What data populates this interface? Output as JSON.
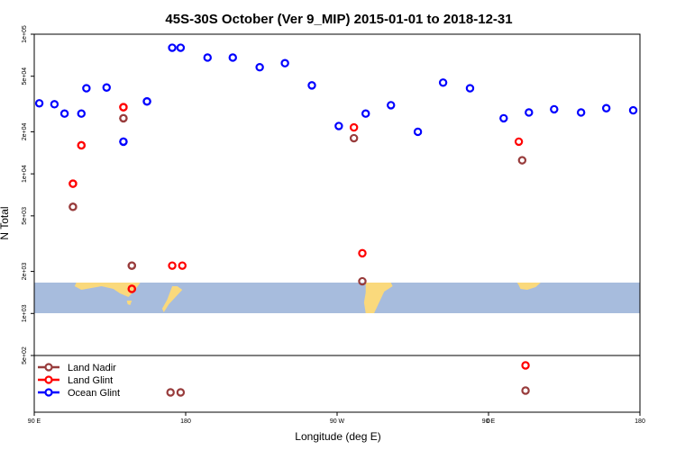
{
  "chart_data": {
    "type": "scatter",
    "title": "45S-30S October (Ver 9_MIP)   2015-01-01 to 2018-12-31",
    "xlabel": "Longitude (deg E)",
    "ylabel": "N Total",
    "y_scale": "log",
    "xlim": [
      90,
      180
    ],
    "ylim": [
      500,
      100000
    ],
    "x_tick_labels": [
      "90 E",
      "180",
      "90 W",
      "0",
      "90 E",
      "180"
    ],
    "y_tick_labels": [
      "5e+02",
      "1e+03",
      "2e+03",
      "5e+03",
      "1e+04",
      "2e+04",
      "5e+04",
      "1e+05"
    ],
    "legend_position": "bottom-left",
    "map_band": {
      "lat_range": "45S-30S",
      "ocean_color": "#a7bcdd",
      "land_color": "#fad97c"
    },
    "below_axis_note": "points with values below the y range are drawn in the strip under the axis",
    "series": [
      {
        "name": "Land Nadir",
        "color": "#983c3c",
        "points": [
          {
            "lon": 113,
            "n": 5800
          },
          {
            "lon": 143,
            "n": 25000
          },
          {
            "lon": 148,
            "n": 2200
          },
          {
            "lon": 171,
            "n": null
          },
          {
            "lon": -80,
            "n": 18000
          },
          {
            "lon": -75,
            "n": 1700
          },
          {
            "lon": 20,
            "n": 12500
          },
          {
            "lon": 22,
            "n": null
          },
          {
            "lon": 113,
            "n": 5800
          },
          {
            "lon": 143,
            "n": 25000
          },
          {
            "lon": 148,
            "n": 2200
          },
          {
            "lon": 177,
            "n": null
          }
        ]
      },
      {
        "name": "Land Glint",
        "color": "#ff0000",
        "points": [
          {
            "lon": 113,
            "n": 8500
          },
          {
            "lon": 118,
            "n": 16000
          },
          {
            "lon": 143,
            "n": 30000
          },
          {
            "lon": 148,
            "n": 1500
          },
          {
            "lon": 172,
            "n": 2200
          },
          {
            "lon": -80,
            "n": 21500
          },
          {
            "lon": -75,
            "n": 2700
          },
          {
            "lon": 18,
            "n": 17000
          },
          {
            "lon": 22,
            "n": null
          },
          {
            "lon": 113,
            "n": 8500
          },
          {
            "lon": 118,
            "n": 16000
          },
          {
            "lon": 143,
            "n": 30000
          },
          {
            "lon": 148,
            "n": 1500
          },
          {
            "lon": 178,
            "n": 2200
          }
        ]
      },
      {
        "name": "Ocean Glint",
        "color": "#0000ff",
        "points": [
          {
            "lon": 93,
            "n": 32000
          },
          {
            "lon": 108,
            "n": 27000
          },
          {
            "lon": 121,
            "n": 41000
          },
          {
            "lon": 143,
            "n": 17000
          },
          {
            "lon": 157,
            "n": 33000
          },
          {
            "lon": 172,
            "n": 80000
          },
          {
            "lon": -167,
            "n": 68000
          },
          {
            "lon": -152,
            "n": 68000
          },
          {
            "lon": -136,
            "n": 58000
          },
          {
            "lon": -121,
            "n": 62000
          },
          {
            "lon": -105,
            "n": 43000
          },
          {
            "lon": -89,
            "n": 22000
          },
          {
            "lon": -73,
            "n": 27000
          },
          {
            "lon": -58,
            "n": 31000
          },
          {
            "lon": -42,
            "n": 20000
          },
          {
            "lon": -27,
            "n": 45000
          },
          {
            "lon": -11,
            "n": 41000
          },
          {
            "lon": 9,
            "n": 25000
          },
          {
            "lon": 24,
            "n": 27500
          },
          {
            "lon": 39,
            "n": 29000
          },
          {
            "lon": 55,
            "n": 27500
          },
          {
            "lon": 70,
            "n": 29500
          },
          {
            "lon": 86,
            "n": 28500
          },
          {
            "lon": 102,
            "n": 31500
          },
          {
            "lon": 118,
            "n": 27000
          },
          {
            "lon": 133,
            "n": 41500
          },
          {
            "lon": 143,
            "n": 17000
          },
          {
            "lon": 157,
            "n": 33000
          },
          {
            "lon": 177,
            "n": 80000
          }
        ]
      }
    ]
  }
}
